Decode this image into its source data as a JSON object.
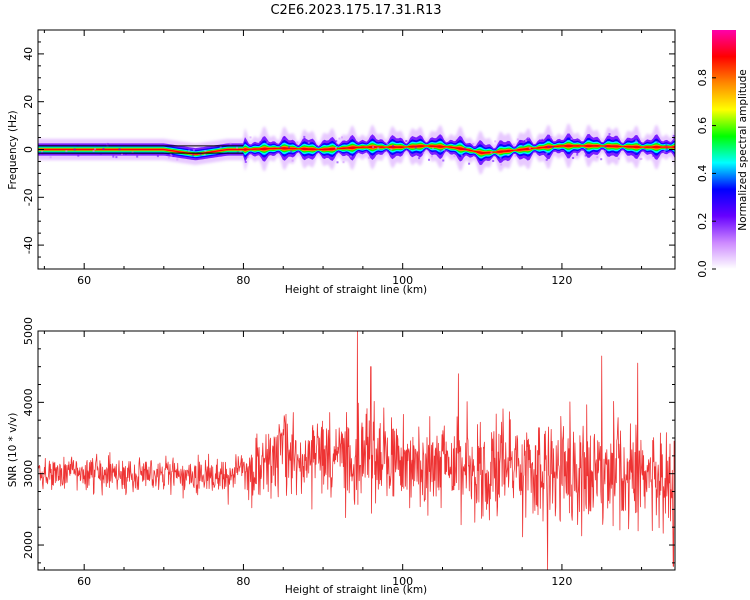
{
  "figure": {
    "title": "C2E6.2023.175.17.31.R13"
  },
  "chart_data": [
    {
      "type": "heatmap",
      "xlabel": "Height of straight line (km)",
      "ylabel": "Frequency (Hz)",
      "xlim": [
        54.2,
        134.2
      ],
      "ylim": [
        -50,
        50
      ],
      "xticks": [
        60,
        80,
        100,
        120
      ],
      "yticks": [
        -40,
        -20,
        0,
        20,
        40
      ],
      "grid": false,
      "ridge": {
        "x": [
          55,
          60,
          65,
          70,
          72,
          74,
          76,
          78,
          80,
          85,
          90,
          95,
          100,
          103,
          106,
          108,
          110,
          112,
          115,
          118,
          120,
          125,
          130,
          134
        ],
        "frequency": [
          0,
          0,
          0,
          0,
          -1,
          -2,
          -1,
          0,
          0,
          0.5,
          0,
          1,
          1,
          1.5,
          1,
          0,
          -1.5,
          -1,
          0,
          1,
          1.5,
          1.5,
          1,
          1
        ]
      },
      "reference_band": {
        "x_start": 54.2,
        "x_end": 80,
        "frequency": [
          -1.5,
          1.5
        ]
      },
      "colorbar": {
        "label": "Normalized spectral amplitude",
        "range": [
          0,
          1
        ],
        "ticks": [
          "0.0",
          "0.2",
          "0.4",
          "0.6",
          "0.8"
        ],
        "colormap": [
          "#ffffff",
          "#cc88ff",
          "#6600ff",
          "#0000ff",
          "#00ffff",
          "#00ff00",
          "#ffff00",
          "#ff8800",
          "#ff0000",
          "#ff00aa"
        ]
      }
    },
    {
      "type": "line",
      "xlabel": "Height of straight line (km)",
      "ylabel": "SNR (10 * v/v)",
      "xlim": [
        54.2,
        134.2
      ],
      "ylim": [
        1650,
        5000
      ],
      "xticks": [
        60,
        80,
        100,
        120
      ],
      "yticks": [
        2000,
        3000,
        4000,
        5000
      ],
      "grid": false,
      "series": [
        {
          "color": "#ee3333",
          "x_start": 54.2,
          "x_end": 134.2,
          "baseline": {
            "x": [
              54.2,
              60,
              70,
              78,
              80,
              85,
              90,
              95,
              100,
              110,
              120,
              125,
              130,
              134.2
            ],
            "y": [
              3000,
              3000,
              2980,
              2920,
              3100,
              3250,
              3200,
              3250,
              3150,
              3100,
              3000,
              3000,
              2950,
              2850
            ]
          },
          "spread": {
            "x": [
              54.2,
              80,
              80.5,
              95,
              110,
              120,
              134.2
            ],
            "y": [
              190,
              220,
              480,
              560,
              620,
              650,
              620
            ]
          },
          "peaks": [
            {
              "x": 94.3,
              "y": 5000
            },
            {
              "x": 125.0,
              "y": 4650
            },
            {
              "x": 129.5,
              "y": 4550
            },
            {
              "x": 96.0,
              "y": 4500
            },
            {
              "x": 107.0,
              "y": 4400
            },
            {
              "x": 118.2,
              "y": 1650
            },
            {
              "x": 134.0,
              "y": 1700
            }
          ]
        }
      ]
    }
  ]
}
